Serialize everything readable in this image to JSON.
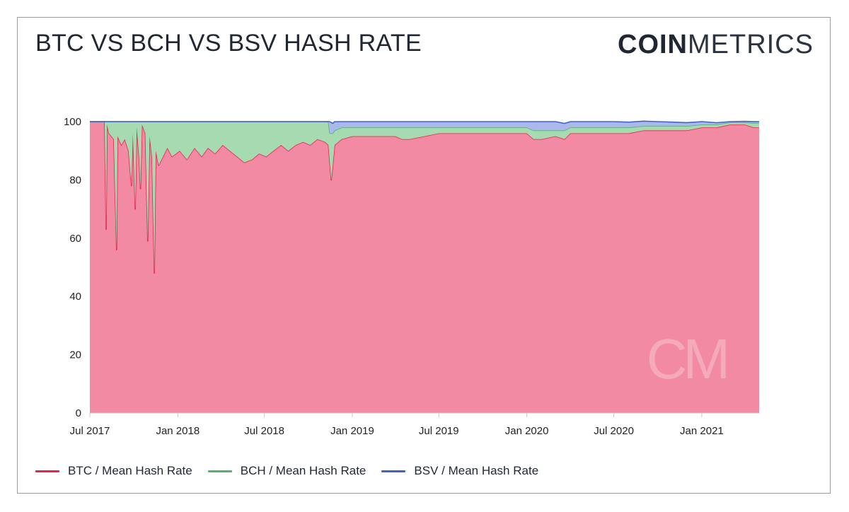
{
  "header": {
    "title": "BTC VS BCH VS BSV HASH RATE",
    "brand_bold": "COIN",
    "brand_light": "METRICS"
  },
  "watermark": "CM",
  "colors": {
    "btc": "#e8234e",
    "btc_fill": "#f28aa3",
    "bch": "#55b16b",
    "bch_fill": "#a6dbb2",
    "bsv": "#3f63c9",
    "bsv_fill": "#aab9ea"
  },
  "chart_data": {
    "type": "area",
    "stacked": true,
    "x_unit": "date",
    "xlim": [
      "2017-07-01",
      "2021-05-01"
    ],
    "ylim": [
      0,
      100
    ],
    "y_ticks": [
      0,
      20,
      40,
      60,
      80,
      100
    ],
    "x_ticks": [
      {
        "date": "2017-07-01",
        "label": "Jul 2017"
      },
      {
        "date": "2018-01-01",
        "label": "Jan 2018"
      },
      {
        "date": "2018-07-01",
        "label": "Jul 2018"
      },
      {
        "date": "2019-01-01",
        "label": "Jan 2019"
      },
      {
        "date": "2019-07-01",
        "label": "Jul 2019"
      },
      {
        "date": "2020-01-01",
        "label": "Jan 2020"
      },
      {
        "date": "2020-07-01",
        "label": "Jul 2020"
      },
      {
        "date": "2021-01-01",
        "label": "Jan 2021"
      }
    ],
    "grid": false,
    "legend_position": "bottom",
    "series": [
      {
        "name": "BTC / Mean Hash Rate",
        "key": "btc",
        "points": [
          [
            "2017-07-01",
            100
          ],
          [
            "2017-08-01",
            100
          ],
          [
            "2017-08-04",
            63
          ],
          [
            "2017-08-06",
            99
          ],
          [
            "2017-08-10",
            96
          ],
          [
            "2017-08-20",
            94
          ],
          [
            "2017-08-26",
            56
          ],
          [
            "2017-08-28",
            95
          ],
          [
            "2017-09-05",
            92
          ],
          [
            "2017-09-12",
            94
          ],
          [
            "2017-09-20",
            90
          ],
          [
            "2017-09-26",
            78
          ],
          [
            "2017-09-29",
            96
          ],
          [
            "2017-10-04",
            70
          ],
          [
            "2017-10-07",
            98
          ],
          [
            "2017-10-12",
            88
          ],
          [
            "2017-10-15",
            77
          ],
          [
            "2017-10-18",
            99
          ],
          [
            "2017-10-25",
            96
          ],
          [
            "2017-10-30",
            59
          ],
          [
            "2017-11-03",
            95
          ],
          [
            "2017-11-08",
            88
          ],
          [
            "2017-11-13",
            48
          ],
          [
            "2017-11-16",
            90
          ],
          [
            "2017-11-22",
            85
          ],
          [
            "2017-12-01",
            88
          ],
          [
            "2017-12-10",
            91
          ],
          [
            "2017-12-20",
            88
          ],
          [
            "2018-01-05",
            90
          ],
          [
            "2018-01-20",
            87
          ],
          [
            "2018-02-05",
            91
          ],
          [
            "2018-02-20",
            88
          ],
          [
            "2018-03-05",
            91
          ],
          [
            "2018-03-20",
            89
          ],
          [
            "2018-04-05",
            92
          ],
          [
            "2018-04-20",
            90
          ],
          [
            "2018-05-05",
            88
          ],
          [
            "2018-05-20",
            86
          ],
          [
            "2018-06-05",
            87
          ],
          [
            "2018-06-20",
            89
          ],
          [
            "2018-07-05",
            88
          ],
          [
            "2018-07-20",
            90
          ],
          [
            "2018-08-05",
            92
          ],
          [
            "2018-08-20",
            90
          ],
          [
            "2018-09-05",
            92
          ],
          [
            "2018-09-20",
            93
          ],
          [
            "2018-10-05",
            92
          ],
          [
            "2018-10-20",
            94
          ],
          [
            "2018-11-05",
            93
          ],
          [
            "2018-11-12",
            92
          ],
          [
            "2018-11-15",
            86
          ],
          [
            "2018-11-18",
            80
          ],
          [
            "2018-11-21",
            85
          ],
          [
            "2018-11-25",
            92
          ],
          [
            "2018-12-10",
            94
          ],
          [
            "2019-01-01",
            95
          ],
          [
            "2019-02-01",
            95
          ],
          [
            "2019-03-01",
            95
          ],
          [
            "2019-04-01",
            95
          ],
          [
            "2019-04-15",
            94
          ],
          [
            "2019-05-01",
            94
          ],
          [
            "2019-06-01",
            95
          ],
          [
            "2019-07-01",
            96
          ],
          [
            "2019-08-01",
            96
          ],
          [
            "2019-09-01",
            96
          ],
          [
            "2019-10-01",
            96
          ],
          [
            "2019-11-01",
            96
          ],
          [
            "2019-12-01",
            96
          ],
          [
            "2020-01-01",
            96
          ],
          [
            "2020-01-15",
            94
          ],
          [
            "2020-02-01",
            94
          ],
          [
            "2020-03-01",
            95
          ],
          [
            "2020-03-20",
            94
          ],
          [
            "2020-04-01",
            96
          ],
          [
            "2020-05-01",
            96
          ],
          [
            "2020-06-01",
            96
          ],
          [
            "2020-07-01",
            96
          ],
          [
            "2020-08-01",
            96
          ],
          [
            "2020-09-01",
            97
          ],
          [
            "2020-10-01",
            97
          ],
          [
            "2020-11-01",
            97
          ],
          [
            "2020-12-01",
            97
          ],
          [
            "2021-01-01",
            98
          ],
          [
            "2021-02-01",
            98
          ],
          [
            "2021-03-01",
            99
          ],
          [
            "2021-04-01",
            99
          ],
          [
            "2021-04-20",
            98
          ],
          [
            "2021-05-01",
            98
          ]
        ]
      },
      {
        "name": "BCH / Mean Hash Rate",
        "key": "bch",
        "points": [
          [
            "2017-07-01",
            0
          ],
          [
            "2017-08-01",
            0
          ],
          [
            "2017-08-04",
            37
          ],
          [
            "2017-08-06",
            1
          ],
          [
            "2017-08-10",
            4
          ],
          [
            "2017-08-20",
            6
          ],
          [
            "2017-08-26",
            44
          ],
          [
            "2017-08-28",
            5
          ],
          [
            "2017-09-05",
            8
          ],
          [
            "2017-09-12",
            6
          ],
          [
            "2017-09-20",
            10
          ],
          [
            "2017-09-26",
            22
          ],
          [
            "2017-09-29",
            4
          ],
          [
            "2017-10-04",
            30
          ],
          [
            "2017-10-07",
            2
          ],
          [
            "2017-10-12",
            12
          ],
          [
            "2017-10-15",
            23
          ],
          [
            "2017-10-18",
            1
          ],
          [
            "2017-10-25",
            4
          ],
          [
            "2017-10-30",
            41
          ],
          [
            "2017-11-03",
            5
          ],
          [
            "2017-11-08",
            12
          ],
          [
            "2017-11-13",
            52
          ],
          [
            "2017-11-16",
            10
          ],
          [
            "2017-11-22",
            15
          ],
          [
            "2017-12-01",
            12
          ],
          [
            "2017-12-10",
            9
          ],
          [
            "2017-12-20",
            12
          ],
          [
            "2018-01-05",
            10
          ],
          [
            "2018-01-20",
            13
          ],
          [
            "2018-02-05",
            9
          ],
          [
            "2018-02-20",
            12
          ],
          [
            "2018-03-05",
            9
          ],
          [
            "2018-03-20",
            11
          ],
          [
            "2018-04-05",
            8
          ],
          [
            "2018-04-20",
            10
          ],
          [
            "2018-05-05",
            12
          ],
          [
            "2018-05-20",
            14
          ],
          [
            "2018-06-05",
            13
          ],
          [
            "2018-06-20",
            11
          ],
          [
            "2018-07-05",
            12
          ],
          [
            "2018-07-20",
            10
          ],
          [
            "2018-08-05",
            8
          ],
          [
            "2018-08-20",
            10
          ],
          [
            "2018-09-05",
            8
          ],
          [
            "2018-09-20",
            7
          ],
          [
            "2018-10-05",
            8
          ],
          [
            "2018-10-20",
            6
          ],
          [
            "2018-11-05",
            7
          ],
          [
            "2018-11-12",
            8
          ],
          [
            "2018-11-15",
            10
          ],
          [
            "2018-11-18",
            16
          ],
          [
            "2018-11-21",
            11
          ],
          [
            "2018-11-25",
            5
          ],
          [
            "2018-12-10",
            4
          ],
          [
            "2019-01-01",
            3
          ],
          [
            "2019-02-01",
            3
          ],
          [
            "2019-03-01",
            3
          ],
          [
            "2019-04-01",
            3
          ],
          [
            "2019-04-15",
            4
          ],
          [
            "2019-05-01",
            4
          ],
          [
            "2019-06-01",
            3
          ],
          [
            "2019-07-01",
            2
          ],
          [
            "2019-08-01",
            2
          ],
          [
            "2019-09-01",
            2
          ],
          [
            "2019-10-01",
            2
          ],
          [
            "2019-11-01",
            2
          ],
          [
            "2019-12-01",
            2
          ],
          [
            "2020-01-01",
            2
          ],
          [
            "2020-01-15",
            3
          ],
          [
            "2020-02-01",
            3
          ],
          [
            "2020-03-01",
            2
          ],
          [
            "2020-03-20",
            3
          ],
          [
            "2020-04-01",
            2
          ],
          [
            "2020-05-01",
            2
          ],
          [
            "2020-06-01",
            2
          ],
          [
            "2020-07-01",
            2
          ],
          [
            "2020-08-01",
            2
          ],
          [
            "2020-09-01",
            1.5
          ],
          [
            "2020-10-01",
            1.5
          ],
          [
            "2020-11-01",
            1.5
          ],
          [
            "2020-12-01",
            1.5
          ],
          [
            "2021-01-01",
            1
          ],
          [
            "2021-02-01",
            1
          ],
          [
            "2021-03-01",
            0.7
          ],
          [
            "2021-04-01",
            0.7
          ],
          [
            "2021-04-20",
            1.5
          ],
          [
            "2021-05-01",
            1.5
          ]
        ]
      },
      {
        "name": "BSV / Mean Hash Rate",
        "key": "bsv",
        "points": [
          [
            "2017-07-01",
            0
          ],
          [
            "2018-11-12",
            0
          ],
          [
            "2018-11-15",
            4
          ],
          [
            "2018-11-25",
            3
          ],
          [
            "2018-12-10",
            2
          ],
          [
            "2019-01-01",
            2
          ],
          [
            "2019-04-01",
            2
          ],
          [
            "2019-06-01",
            2
          ],
          [
            "2019-07-01",
            2
          ],
          [
            "2019-10-01",
            2
          ],
          [
            "2019-12-01",
            2
          ],
          [
            "2020-01-01",
            2
          ],
          [
            "2020-01-15",
            3
          ],
          [
            "2020-03-01",
            3
          ],
          [
            "2020-04-01",
            2
          ],
          [
            "2020-05-01",
            2
          ],
          [
            "2020-07-01",
            2
          ],
          [
            "2020-10-01",
            1.5
          ],
          [
            "2021-01-01",
            1
          ],
          [
            "2021-03-01",
            0.3
          ],
          [
            "2021-05-01",
            0.5
          ]
        ]
      }
    ]
  }
}
